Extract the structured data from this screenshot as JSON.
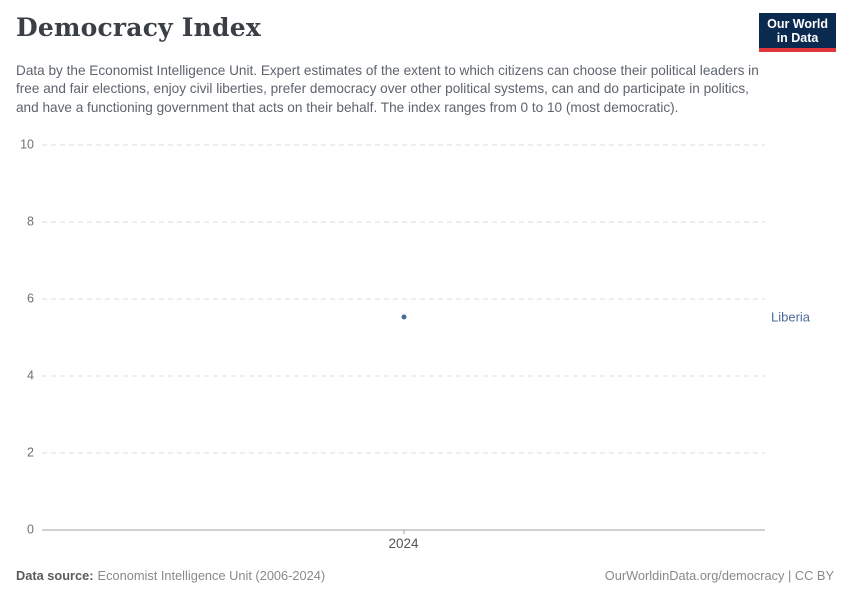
{
  "header": {
    "title": "Democracy Index",
    "subtitle": "Data by the Economist Intelligence Unit. Expert estimates of the extent to which citizens can choose their political leaders in free and fair elections, enjoy civil liberties, prefer democracy over other political systems, can and do participate in politics, and have a functioning government that acts on their behalf. The index ranges from 0 to 10 (most democratic).",
    "logo": {
      "line1": "Our World",
      "line2": "in Data",
      "bg_color": "#0b2a4f",
      "accent_color": "#e0363c"
    }
  },
  "chart_data": {
    "type": "scatter",
    "title": "Democracy Index",
    "x": [
      2024
    ],
    "xticks": [
      "2024"
    ],
    "series": [
      {
        "name": "Liberia",
        "values": [
          5.54
        ],
        "color": "#4c6a9c"
      }
    ],
    "xlabel": "",
    "ylabel": "",
    "ylim": [
      0,
      10
    ],
    "yticks": [
      0,
      2,
      4,
      6,
      8,
      10
    ],
    "grid": "horizontal-dashed",
    "legend_position": "right-of-point"
  },
  "footer": {
    "data_source_label": "Data source:",
    "data_source_value": "Economist Intelligence Unit (2006-2024)",
    "attribution": "OurWorldinData.org/democracy | CC BY"
  }
}
